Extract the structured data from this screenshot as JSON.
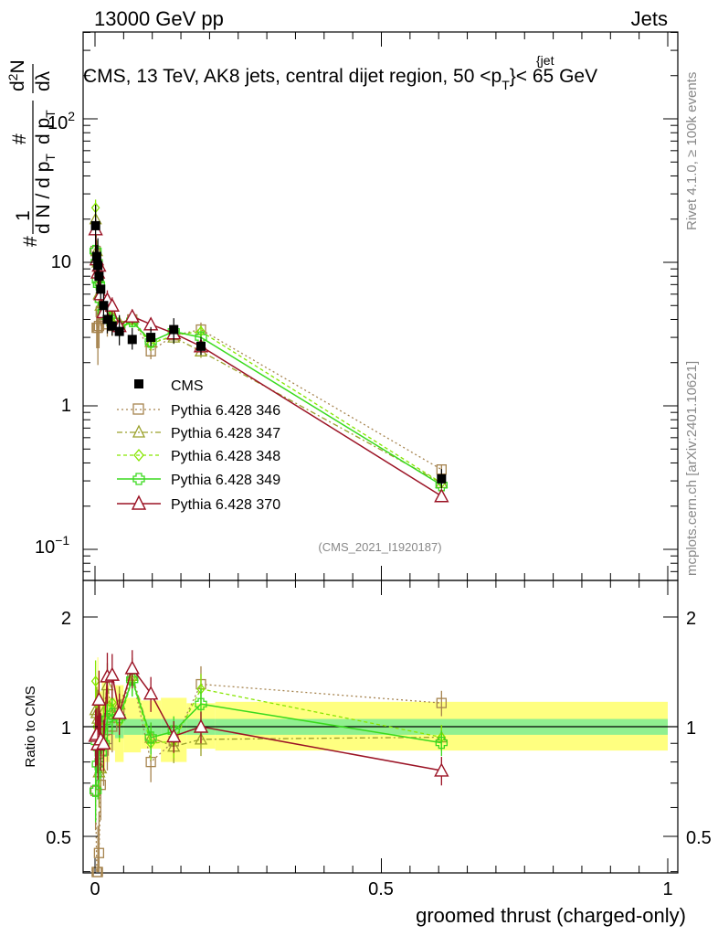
{
  "header": {
    "left": "13000 GeV pp",
    "right": "Jets",
    "title": "CMS, 13 TeV, AK8 jets, central dijet region, 50 <p",
    "title_sup": "{jet",
    "title_sub": "T",
    "title_end": "}< 65 GeV",
    "side_rivet": "Rivet 4.1.0, ≥ 100k events",
    "side_mcplots": "mcplots.cern.ch [arXiv:2401.10621]",
    "analysis_id": "(CMS_2021_I1920187)"
  },
  "axes": {
    "xlabel": "groomed thrust (charged-only)",
    "ratio_ylabel": "Ratio to CMS",
    "ylabel_parts": [
      "#",
      "1",
      "d N / d p",
      "T",
      "#",
      "d p",
      "T",
      "d",
      "2",
      "N",
      "d",
      "λ"
    ],
    "main_ticks": [
      "10",
      "1",
      "10"
    ],
    "main_tick_exps": [
      "2",
      "−1"
    ],
    "x_ticks": [
      "0",
      "0.5",
      "1"
    ],
    "ratio_ticks": [
      "2",
      "1",
      "0.5"
    ]
  },
  "legend": [
    {
      "label": "CMS"
    },
    {
      "label": "Pythia 6.428 346"
    },
    {
      "label": "Pythia 6.428 347"
    },
    {
      "label": "Pythia 6.428 348"
    },
    {
      "label": "Pythia 6.428 349"
    },
    {
      "label": "Pythia 6.428 370"
    }
  ],
  "chart_data": {
    "type": "scatter",
    "xlim": [
      -0.02,
      1.0
    ],
    "ylim_main": [
      0.06,
      400
    ],
    "ylim_ratio": [
      0.38,
      2.45
    ],
    "log_y": true,
    "bins": [
      {
        "lo": 0.0,
        "hi": 0.002
      },
      {
        "lo": 0.002,
        "hi": 0.004
      },
      {
        "lo": 0.004,
        "hi": 0.006
      },
      {
        "lo": 0.006,
        "hi": 0.008
      },
      {
        "lo": 0.008,
        "hi": 0.012
      },
      {
        "lo": 0.012,
        "hi": 0.018
      },
      {
        "lo": 0.018,
        "hi": 0.025
      },
      {
        "lo": 0.025,
        "hi": 0.035
      },
      {
        "lo": 0.035,
        "hi": 0.05
      },
      {
        "lo": 0.05,
        "hi": 0.08
      },
      {
        "lo": 0.08,
        "hi": 0.115
      },
      {
        "lo": 0.115,
        "hi": 0.16
      },
      {
        "lo": 0.16,
        "hi": 0.21
      },
      {
        "lo": 0.21,
        "hi": 1.0
      }
    ],
    "cms": {
      "x": [
        0.001,
        0.003,
        0.005,
        0.007,
        0.01,
        0.015,
        0.0215,
        0.03,
        0.0425,
        0.065,
        0.0975,
        0.1375,
        0.185,
        0.605
      ],
      "y": [
        18,
        11,
        9.5,
        8,
        6.5,
        5,
        4,
        3.6,
        3.3,
        2.9,
        3.0,
        3.4,
        2.6,
        0.31
      ],
      "stat_lo": [
        0.95,
        0.95,
        0.95,
        0.95,
        0.95,
        0.95,
        0.95,
        0.95,
        0.93,
        0.95,
        0.95,
        0.95,
        0.95,
        0.95
      ],
      "stat_hi": [
        1.05,
        1.05,
        1.05,
        1.05,
        1.05,
        1.05,
        1.05,
        1.05,
        1.07,
        1.05,
        1.05,
        1.05,
        1.05,
        1.05
      ],
      "tot_lo": [
        0.55,
        0.75,
        0.65,
        0.8,
        0.85,
        0.75,
        0.8,
        0.86,
        0.8,
        0.85,
        0.87,
        0.8,
        0.87,
        0.86
      ],
      "tot_hi": [
        1.4,
        1.2,
        1.55,
        1.25,
        1.25,
        1.35,
        1.3,
        1.2,
        1.3,
        1.2,
        1.18,
        1.2,
        1.16,
        1.17
      ]
    },
    "series": [
      {
        "name": "Pythia 6.428 346",
        "color": "#a6844f",
        "dash": "2,3",
        "marker": "square",
        "x": [
          0.001,
          0.003,
          0.005,
          0.007,
          0.01,
          0.015,
          0.0215,
          0.03,
          0.0425,
          0.065,
          0.0975,
          0.1375,
          0.185,
          0.605
        ],
        "y": [
          12,
          3.5,
          3.5,
          3.6,
          4.5,
          4.3,
          3.7,
          3.6,
          3.6,
          4.0,
          2.4,
          3.1,
          3.4,
          0.36
        ],
        "err": [
          0.22,
          0.28,
          0.45,
          0.3,
          0.2,
          0.2,
          0.18,
          0.15,
          0.15,
          0.12,
          0.12,
          0.1,
          0.12,
          0.08
        ]
      },
      {
        "name": "Pythia 6.428 347",
        "color": "#9aa02a",
        "dash": "6,3,2,3",
        "marker": "triangle",
        "x": [
          0.001,
          0.003,
          0.005,
          0.007,
          0.01,
          0.015,
          0.0215,
          0.03,
          0.0425,
          0.065,
          0.0975,
          0.1375,
          0.185,
          0.605
        ],
        "y": [
          20,
          12,
          10,
          6,
          5,
          5.5,
          5.2,
          3.9,
          3.8,
          4.0,
          2.8,
          3.0,
          2.4,
          0.29
        ],
        "err": [
          0.15,
          0.18,
          0.2,
          0.2,
          0.15,
          0.15,
          0.15,
          0.12,
          0.12,
          0.1,
          0.1,
          0.1,
          0.1,
          0.08
        ]
      },
      {
        "name": "Pythia 6.428 348",
        "color": "#86e600",
        "dash": "4,3",
        "marker": "diamond",
        "x": [
          0.001,
          0.003,
          0.005,
          0.007,
          0.01,
          0.015,
          0.0215,
          0.03,
          0.0425,
          0.065,
          0.0975,
          0.1375,
          0.185,
          0.605
        ],
        "y": [
          24,
          11,
          8.5,
          7.5,
          6,
          5,
          4.5,
          4.2,
          3.4,
          3.9,
          2.7,
          3.1,
          3.3,
          0.29
        ],
        "err": [
          0.14,
          0.16,
          0.18,
          0.2,
          0.15,
          0.15,
          0.14,
          0.12,
          0.12,
          0.1,
          0.1,
          0.1,
          0.1,
          0.08
        ]
      },
      {
        "name": "Pythia 6.428 349",
        "color": "#3ada1e",
        "dash": "",
        "marker": "cross",
        "x": [
          0.001,
          0.003,
          0.005,
          0.007,
          0.01,
          0.015,
          0.0215,
          0.03,
          0.0425,
          0.065,
          0.0975,
          0.1375,
          0.185,
          0.605
        ],
        "y": [
          12,
          10,
          7.5,
          7,
          5.5,
          4.5,
          4.2,
          3.9,
          3.5,
          3.9,
          2.8,
          3.3,
          3.0,
          0.28
        ],
        "err": [
          0.18,
          0.18,
          0.2,
          0.2,
          0.15,
          0.15,
          0.14,
          0.12,
          0.12,
          0.1,
          0.1,
          0.1,
          0.1,
          0.08
        ]
      },
      {
        "name": "Pythia 6.428 370",
        "color": "#9b1325",
        "dash": "",
        "marker": "triangle-open",
        "x": [
          0.001,
          0.003,
          0.005,
          0.007,
          0.01,
          0.015,
          0.0215,
          0.03,
          0.0425,
          0.065,
          0.0975,
          0.1375,
          0.185,
          0.605
        ],
        "y": [
          17,
          10.5,
          8.5,
          9.5,
          6,
          4.5,
          5.5,
          5,
          3.6,
          4.2,
          3.7,
          3.2,
          2.6,
          0.235
        ],
        "err": [
          0.18,
          0.18,
          0.2,
          0.2,
          0.18,
          0.16,
          0.16,
          0.14,
          0.13,
          0.12,
          0.11,
          0.1,
          0.1,
          0.09
        ]
      }
    ]
  }
}
